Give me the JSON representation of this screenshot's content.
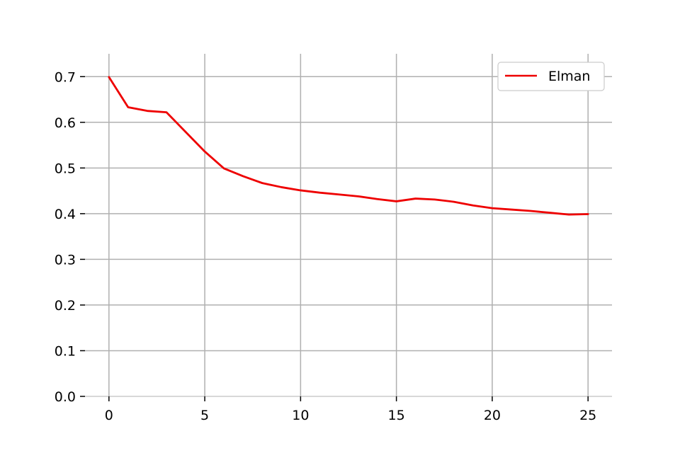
{
  "chart_data": {
    "type": "line",
    "title": "",
    "xlabel": "",
    "ylabel": "",
    "xlim": [
      -1.25,
      26.25
    ],
    "ylim": [
      0.0,
      0.75
    ],
    "xticks": [
      0,
      5,
      10,
      15,
      20,
      25
    ],
    "yticks": [
      0.0,
      0.1,
      0.2,
      0.3,
      0.4,
      0.5,
      0.6,
      0.7
    ],
    "xtick_labels": [
      "0",
      "5",
      "10",
      "15",
      "20",
      "25"
    ],
    "ytick_labels": [
      "0.0",
      "0.1",
      "0.2",
      "0.3",
      "0.4",
      "0.5",
      "0.6",
      "0.7"
    ],
    "grid": true,
    "legend_position": "top-right",
    "series": [
      {
        "name": "Elman",
        "color": "#ee0000",
        "x": [
          0,
          1,
          2,
          3,
          4,
          5,
          6,
          7,
          8,
          9,
          10,
          11,
          12,
          13,
          14,
          15,
          16,
          17,
          18,
          19,
          20,
          21,
          22,
          23,
          24,
          25
        ],
        "y": [
          0.699,
          0.633,
          0.625,
          0.622,
          0.579,
          0.536,
          0.499,
          0.482,
          0.467,
          0.458,
          0.451,
          0.446,
          0.442,
          0.438,
          0.432,
          0.427,
          0.433,
          0.431,
          0.426,
          0.418,
          0.412,
          0.409,
          0.406,
          0.402,
          0.398,
          0.399
        ]
      }
    ]
  }
}
